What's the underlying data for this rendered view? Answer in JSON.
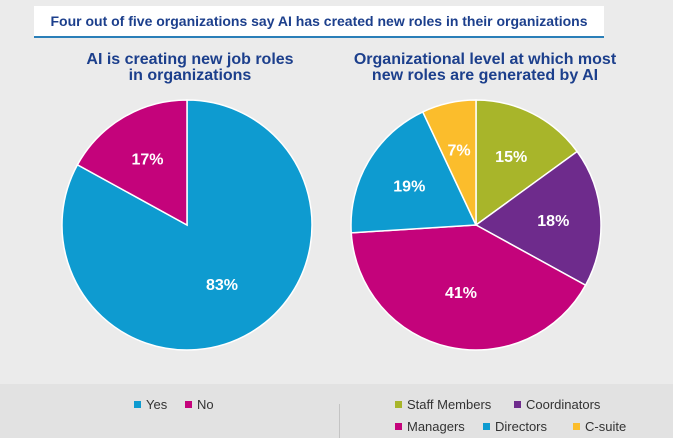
{
  "header": {
    "title": "Four out of five organizations say AI has created new roles in their organizations"
  },
  "chart_data": [
    {
      "type": "pie",
      "title_lines": [
        "AI is creating new job roles",
        "in organizations"
      ],
      "legend_position": "bottom",
      "slices": [
        {
          "label": "Yes",
          "value": 83,
          "display": "83%",
          "color": "#0e9bd0"
        },
        {
          "label": "No",
          "value": 17,
          "display": "17%",
          "color": "#c4037b"
        }
      ]
    },
    {
      "type": "pie",
      "title_lines": [
        "Organizational level at which most",
        "new roles are generated by AI"
      ],
      "legend_position": "bottom",
      "slices": [
        {
          "label": "Staff Members",
          "value": 15,
          "display": "15%",
          "color": "#a8b52a"
        },
        {
          "label": "Coordinators",
          "value": 18,
          "display": "18%",
          "color": "#6e2b8c"
        },
        {
          "label": "Managers",
          "value": 41,
          "display": "41%",
          "color": "#c4037b"
        },
        {
          "label": "Directors",
          "value": 19,
          "display": "19%",
          "color": "#0e9bd0"
        },
        {
          "label": "C-suite",
          "value": 7,
          "display": "7%",
          "color": "#fbbd2c"
        }
      ]
    }
  ]
}
